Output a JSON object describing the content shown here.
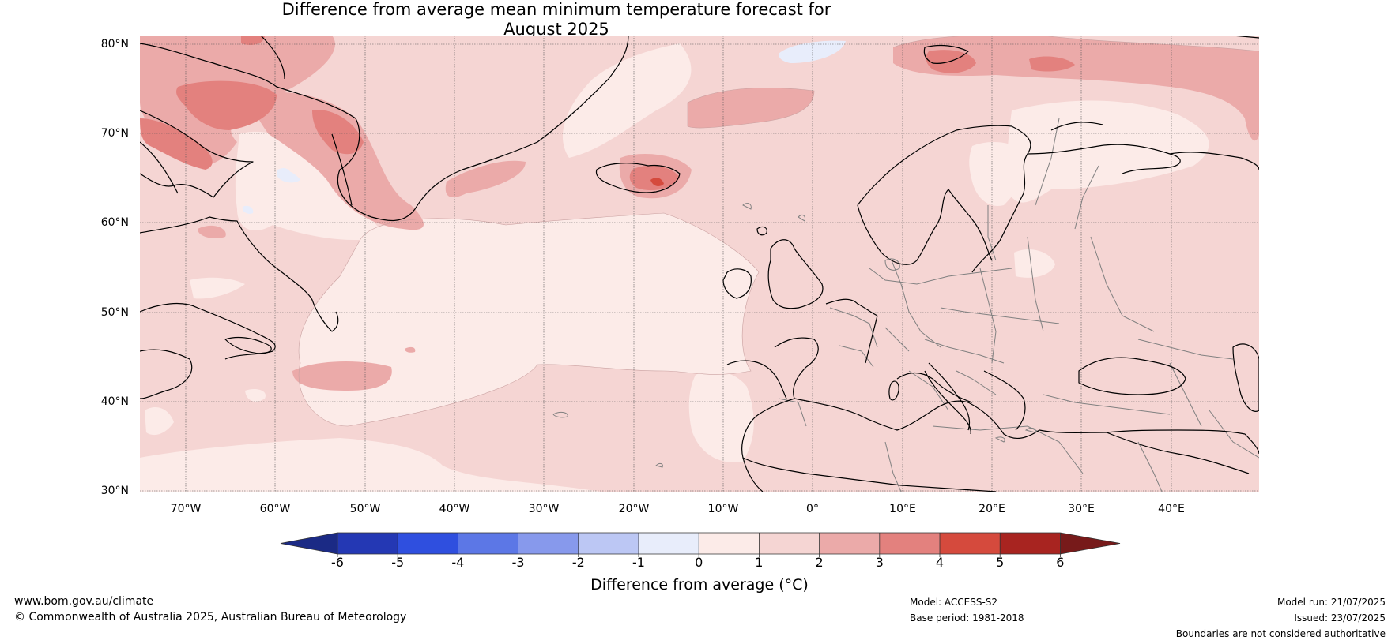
{
  "title": {
    "line1": "Difference from average mean minimum temperature forecast for",
    "line2": "August 2025"
  },
  "map": {
    "region": "North Atlantic and Europe",
    "lat_labels": [
      "80°N",
      "70°N",
      "60°N",
      "50°N",
      "40°N",
      "30°N"
    ],
    "lon_labels": [
      "70°W",
      "60°W",
      "50°W",
      "40°W",
      "30°W",
      "20°W",
      "10°W",
      "0°",
      "10°E",
      "20°E",
      "30°E",
      "40°E"
    ],
    "fill_colors": {
      "0_to_1": "#fcebe8",
      "1_to_2": "#f5d5d3",
      "2_to_3": "#ebaaa9",
      "3_to_4": "#e3817e",
      "4_to_5": "#d54a3d",
      "minus1_to_0": "#e8edfb"
    },
    "coastline_color": "#000000",
    "border_color": "#808080"
  },
  "colorbar": {
    "title": "Difference from average (°C)",
    "tick_labels": [
      "-6",
      "-5",
      "-4",
      "-3",
      "-2",
      "-1",
      "0",
      "1",
      "2",
      "3",
      "4",
      "5",
      "6"
    ],
    "colors": [
      "#1b2a85",
      "#2438b4",
      "#2f4fdf",
      "#5c77e6",
      "#8799ec",
      "#bcc7f4",
      "#e8edfb",
      "#fcebe8",
      "#f5d5d3",
      "#ebaaa9",
      "#e3817e",
      "#d54a3d",
      "#a82420",
      "#771a1a"
    ],
    "extend": "both"
  },
  "footer": {
    "website": "www.bom.gov.au/climate",
    "copyright": "© Commonwealth of Australia 2025, Australian Bureau of Meteorology",
    "model": "Model: ACCESS-S2",
    "base_period": "Base period: 1981-2018",
    "model_run": "Model run: 21/07/2025",
    "issued": "Issued: 23/07/2025",
    "disclaimer": "Boundaries are not considered authoritative"
  }
}
